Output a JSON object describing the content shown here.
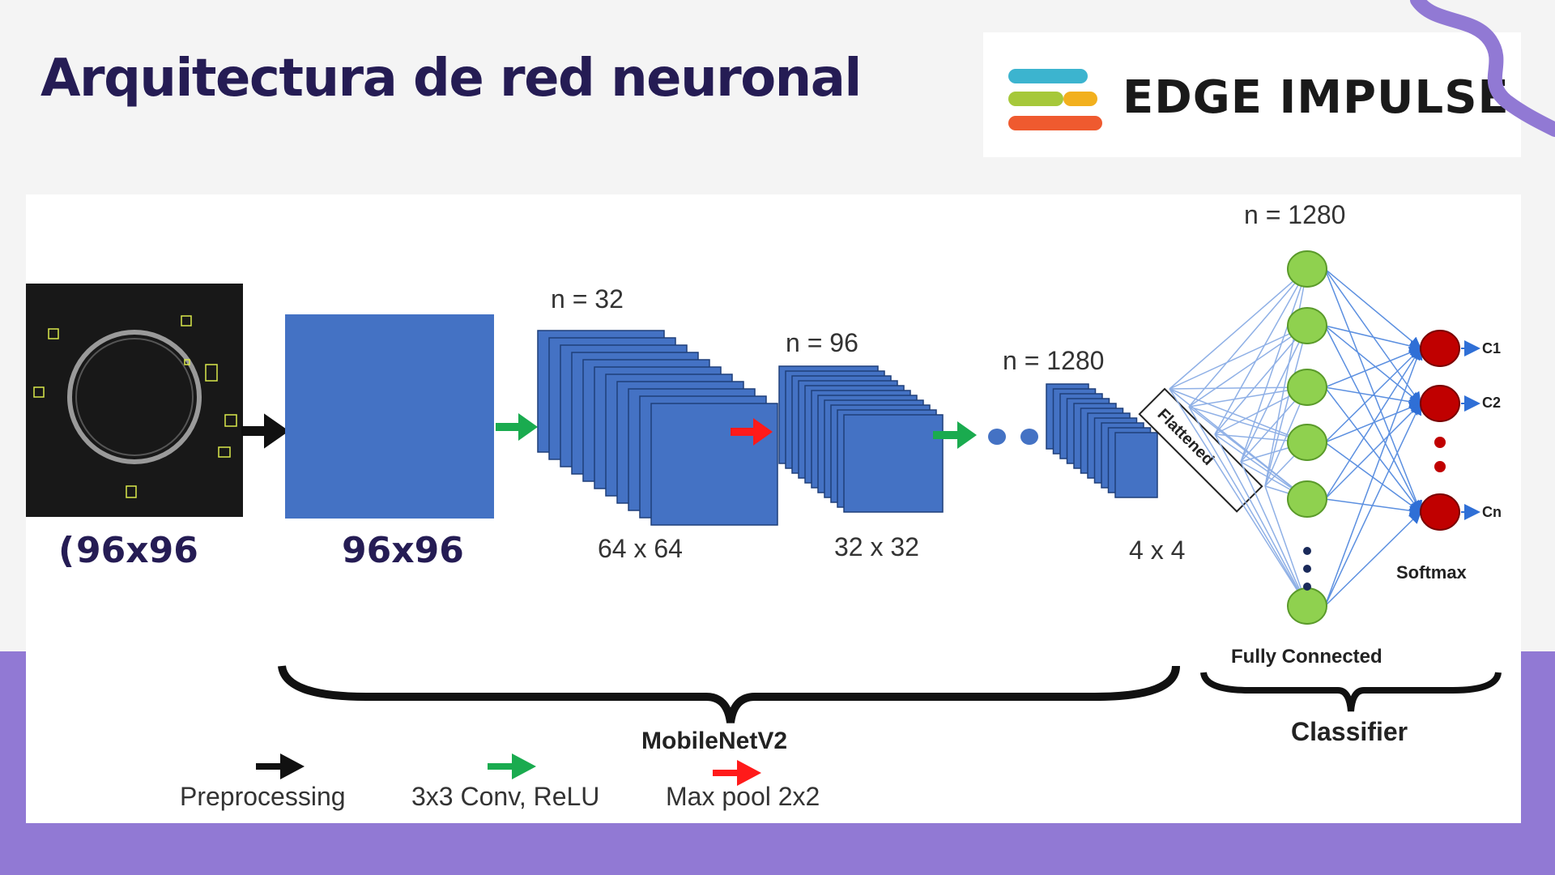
{
  "slide": {
    "title": "Arquitectura de red neuronal",
    "logo_text": "EDGE IMPULSE",
    "colors": {
      "title": "#251c54",
      "band": "#9179d4",
      "block_blue": "#4472c4",
      "node_green": "#8fd14f",
      "node_red": "#c00000",
      "arrow_green": "#1aab4f",
      "arrow_red": "#ff1a1a",
      "arrow_black": "#111111"
    }
  },
  "diagram": {
    "input_size": "96x96",
    "input_mark": "(",
    "preprocessed_size": "96x96",
    "conv1": {
      "n": "n = 32",
      "size": "64 x 64"
    },
    "conv2": {
      "n": "n = 96",
      "size": "32 x 32"
    },
    "conv3": {
      "n": "n = 1280",
      "size": "4 x 4"
    },
    "flattened": "Flattened",
    "fc": {
      "n": "n = 1280",
      "label": "Fully Connected"
    },
    "outputs": [
      "C1",
      "C2",
      "Cn"
    ],
    "softmax": "Softmax",
    "mobilenet_label": "MobileNetV2",
    "classifier_label": "Classifier",
    "legend": {
      "preprocessing": "Preprocessing",
      "conv": "3x3 Conv, ReLU",
      "maxpool": "Max pool 2x2"
    }
  }
}
